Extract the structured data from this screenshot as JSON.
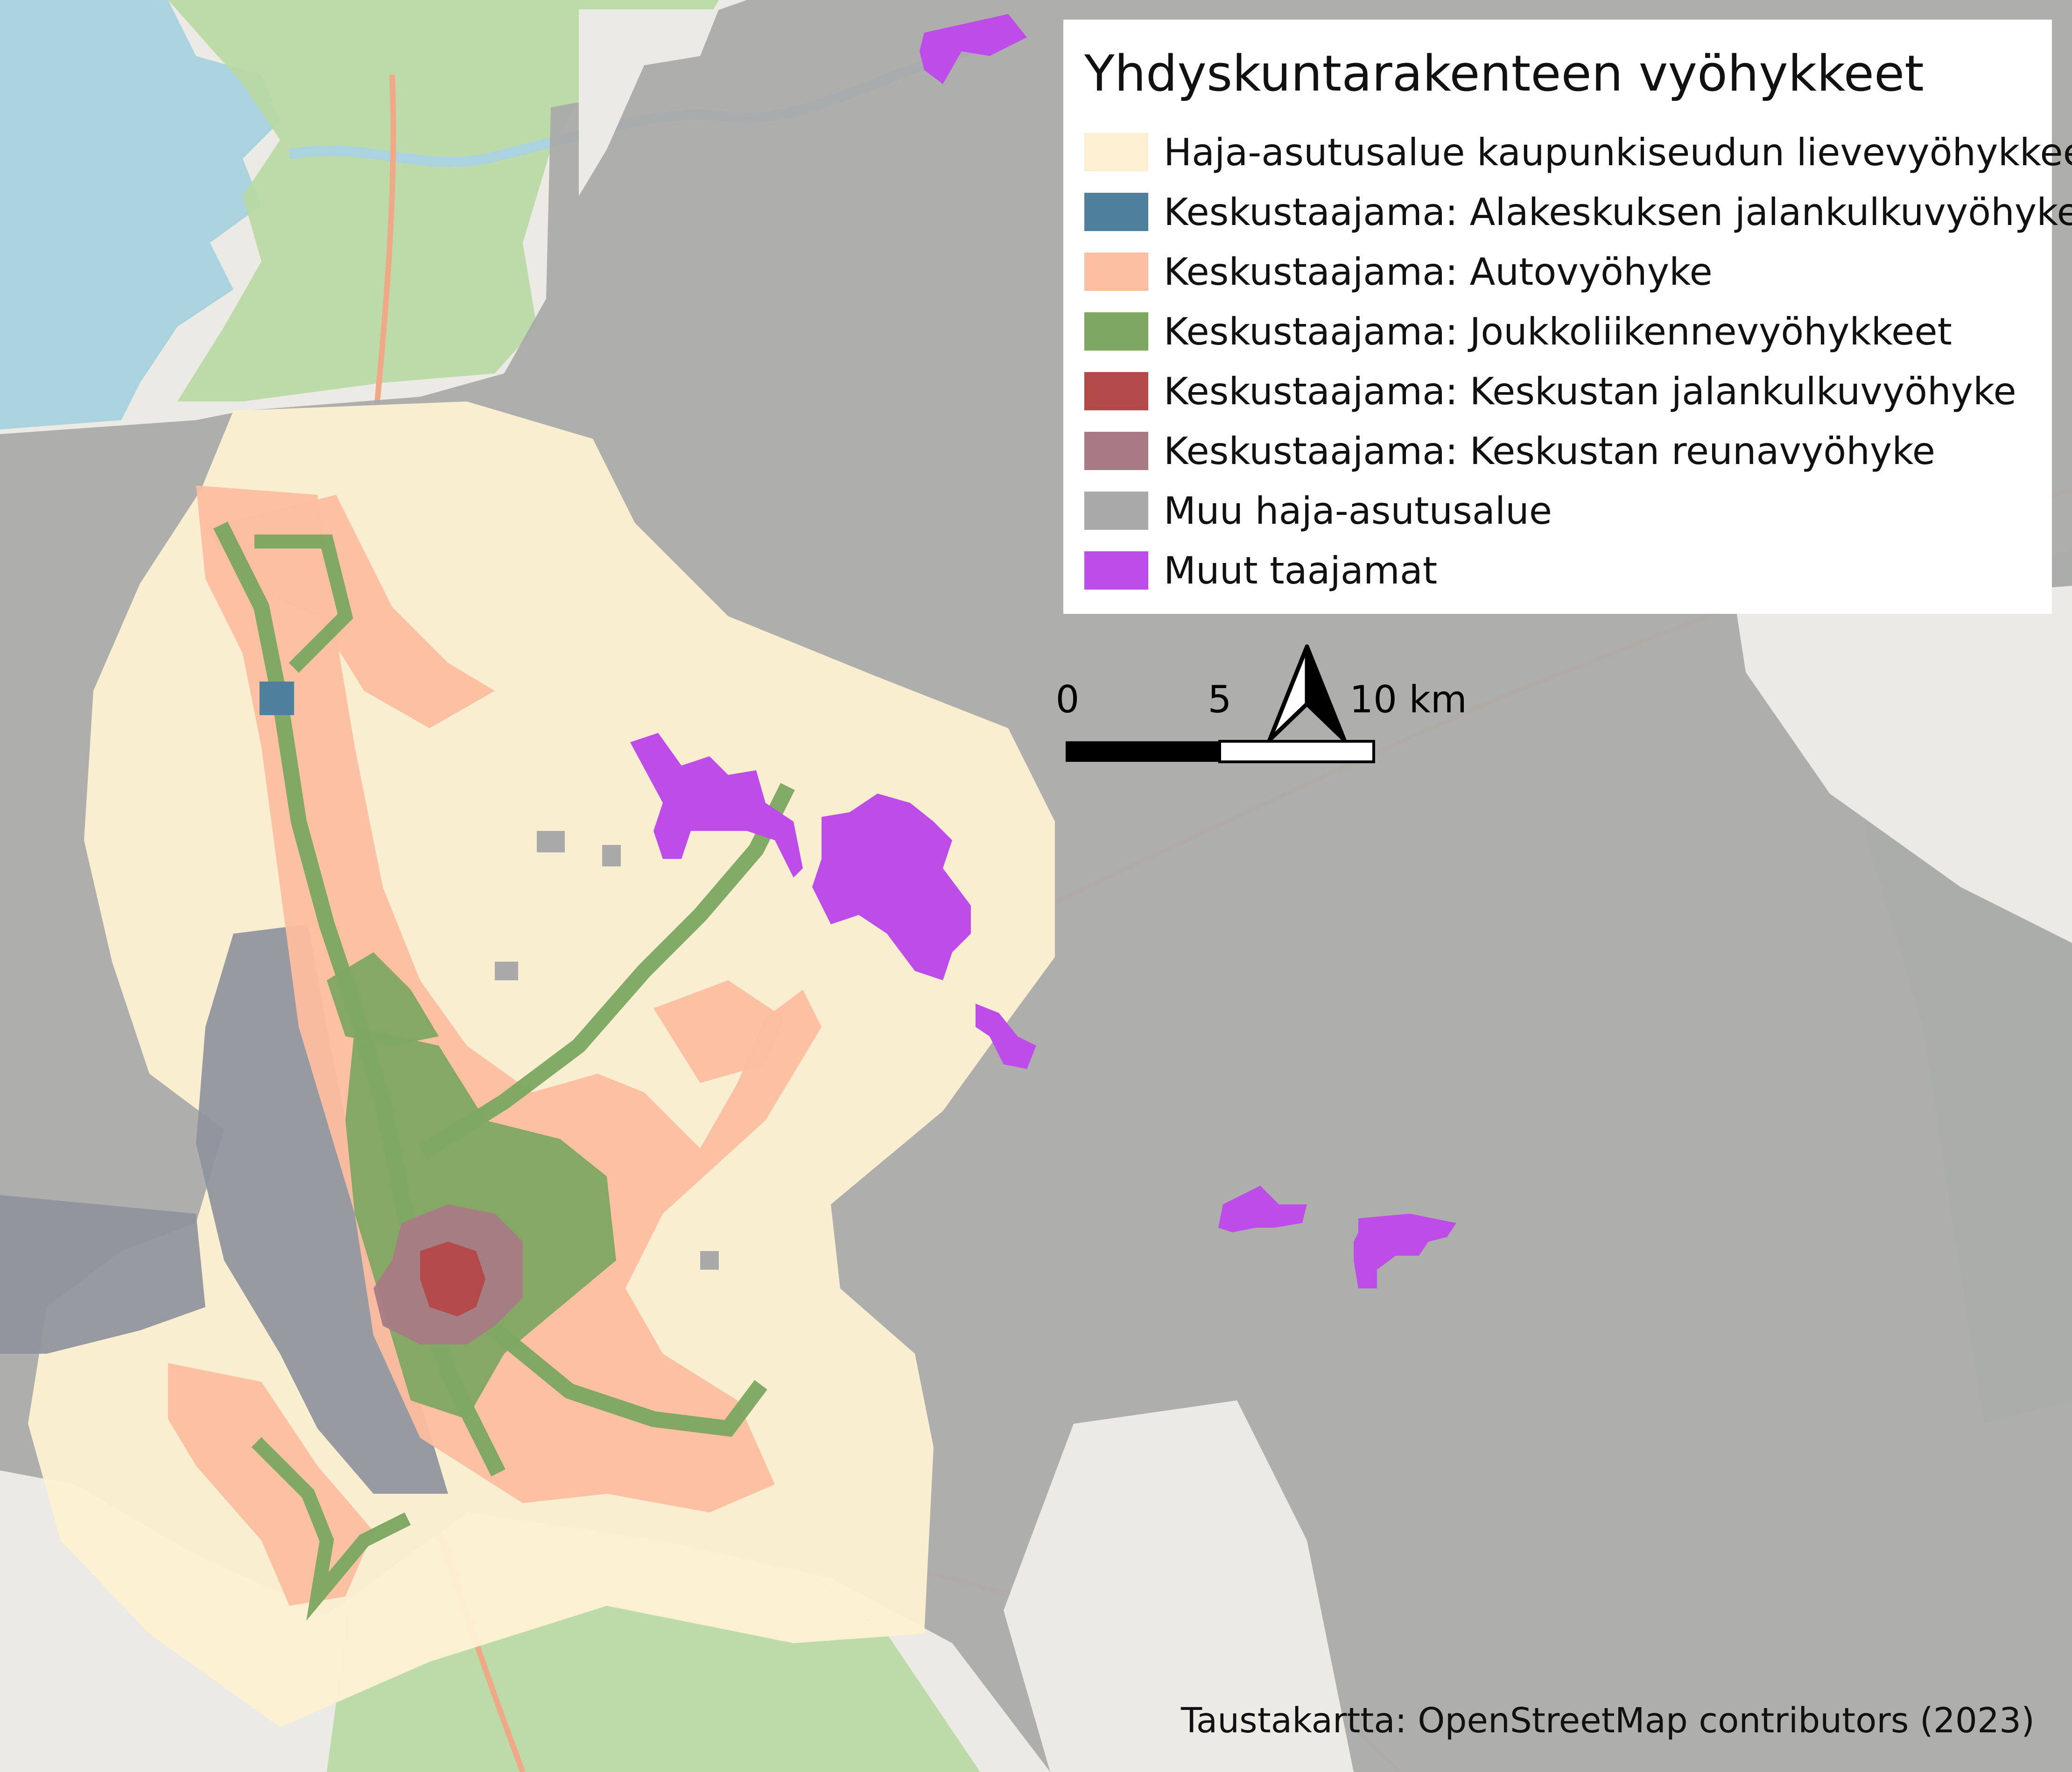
{
  "legend": {
    "title": "Yhdyskuntarakenteen vyöhykkeet",
    "items": [
      {
        "label": "Haja-asutusalue kaupunkiseudun lievevyöhykkeellä",
        "color": "#fdf0d2"
      },
      {
        "label": "Keskustaajama: Alakeskuksen jalankulkuvyöhyke",
        "color": "#4e7f9d"
      },
      {
        "label": "Keskustaajama: Autovyöhyke",
        "color": "#fcbea0"
      },
      {
        "label": "Keskustaajama: Joukkoliikennevyöhykkeet",
        "color": "#7ea862"
      },
      {
        "label": "Keskustaajama: Keskustan jalankulkuvyöhyke",
        "color": "#b24a4a"
      },
      {
        "label": "Keskustaajama: Keskustan reunavyöhyke",
        "color": "#a87b84"
      },
      {
        "label": "Muu haja-asutusalue",
        "color": "#a9a9a9"
      },
      {
        "label": "Muut taajamat",
        "color": "#be4ce8"
      }
    ]
  },
  "scale_bar": {
    "labels": [
      "0",
      "5",
      "10 km"
    ]
  },
  "attribution": "Taustakartta: OpenStreetMap contributors (2023)",
  "basemap": {
    "sea": "#aad3df",
    "land": "#eceae4",
    "forest": "#b8d9a2"
  }
}
